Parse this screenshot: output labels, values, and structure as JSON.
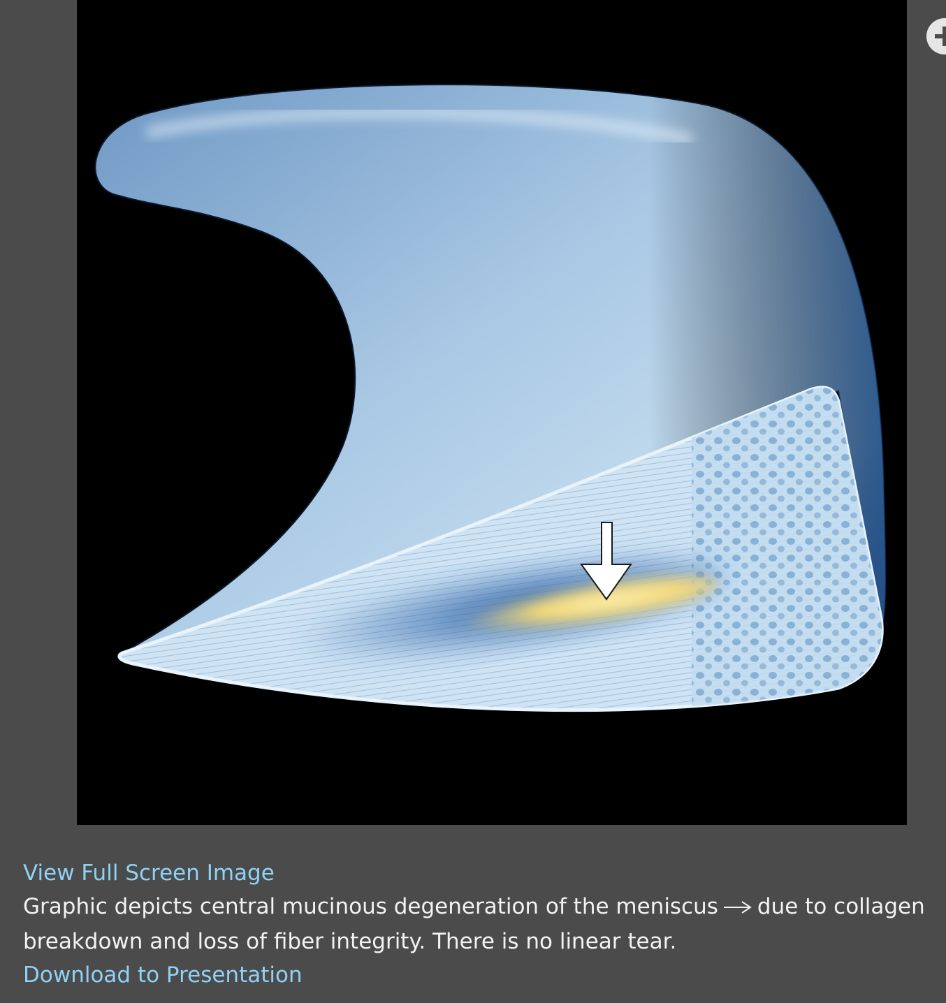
{
  "figure": {
    "background_color": "#000000",
    "zoom_icon": "zoom-in-icon"
  },
  "caption": {
    "view_full_screen": "View Full Screen Image",
    "description_part1": "Graphic depicts central mucinous degeneration of the meniscus",
    "arrow_icon": "right-arrow-icon",
    "description_part2": "due to collagen breakdown and loss of fiber integrity. There is no linear tear.",
    "download_link": "Download to Presentation",
    "link_color": "#8fd2f5",
    "text_color": "#f2f2f2"
  }
}
